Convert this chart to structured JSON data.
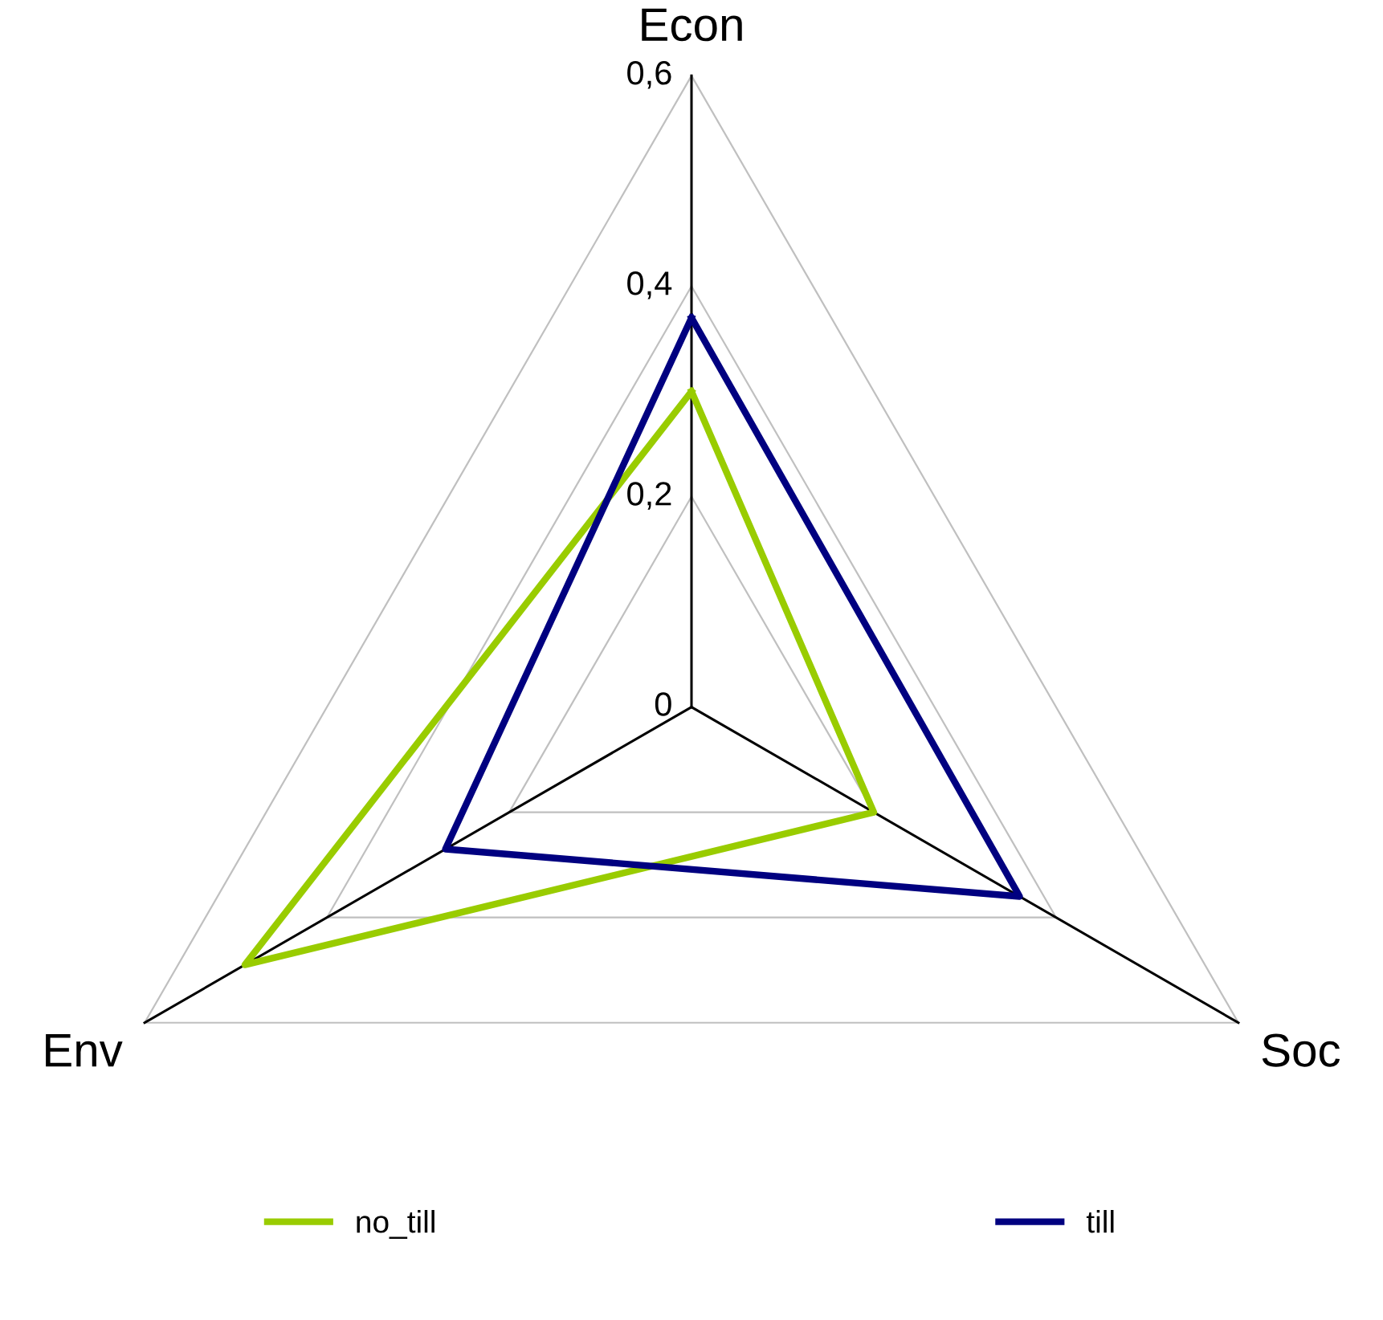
{
  "chart_data": {
    "type": "radar",
    "categories": [
      "Econ",
      "Soc",
      "Env"
    ],
    "series": [
      {
        "name": "no_till",
        "color": "#99cc00",
        "values": [
          0.3,
          0.2,
          0.49
        ]
      },
      {
        "name": "till",
        "color": "#000080",
        "values": [
          0.37,
          0.36,
          0.27
        ]
      }
    ],
    "ylim": [
      0,
      0.6
    ],
    "yticks": [
      0,
      {
        "value": 0.2,
        "label": "0,2"
      },
      {
        "value": 0.4,
        "label": "0,4"
      },
      {
        "value": 0.6,
        "label": "0,6"
      }
    ],
    "grid": true,
    "legend": "bottom"
  }
}
